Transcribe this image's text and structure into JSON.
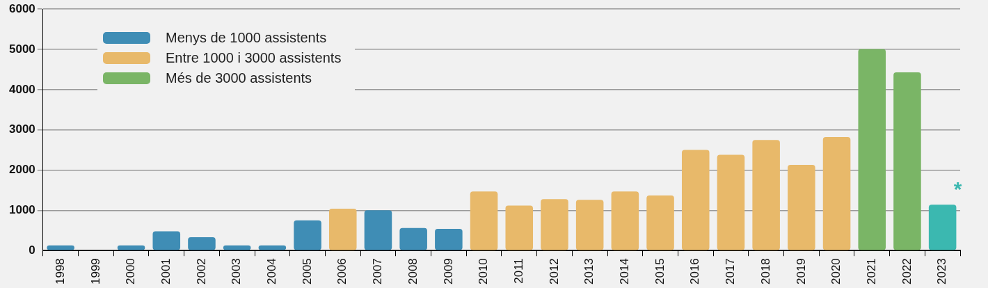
{
  "chart_data": {
    "type": "bar",
    "stacked": true,
    "categories": [
      "1998",
      "1999",
      "2000",
      "2001",
      "2002",
      "2003",
      "2004",
      "2005",
      "2006",
      "2007",
      "2008",
      "2009",
      "2010",
      "2011",
      "2012",
      "2013",
      "2014",
      "2015",
      "2016",
      "2017",
      "2018",
      "2019",
      "2020",
      "2021",
      "2022",
      "2023"
    ],
    "series": [
      {
        "name": "Menys de 1000 assistents",
        "color": "#3f8db5",
        "values": [
          130,
          null,
          130,
          480,
          330,
          130,
          130,
          750,
          null,
          1000,
          560,
          540,
          null,
          null,
          null,
          null,
          null,
          null,
          null,
          null,
          null,
          null,
          null,
          null,
          null,
          null
        ]
      },
      {
        "name": "Entre 1000 i 3000 assistents",
        "color": "#e8b96a",
        "values": [
          null,
          null,
          null,
          null,
          null,
          null,
          null,
          null,
          1040,
          null,
          null,
          null,
          1470,
          1120,
          1280,
          1260,
          1470,
          1370,
          2500,
          2380,
          2750,
          2130,
          2820,
          null,
          null,
          null
        ]
      },
      {
        "name": "Més de 3000 assistents",
        "color": "#7ab566",
        "values": [
          null,
          null,
          null,
          null,
          null,
          null,
          null,
          null,
          null,
          null,
          null,
          null,
          null,
          null,
          null,
          null,
          null,
          null,
          null,
          null,
          null,
          null,
          null,
          5010,
          4430,
          null
        ]
      },
      {
        "color": "#3bb8b0",
        "values": [
          null,
          null,
          null,
          null,
          null,
          null,
          null,
          null,
          null,
          null,
          null,
          null,
          null,
          null,
          null,
          null,
          null,
          null,
          null,
          null,
          null,
          null,
          null,
          null,
          null,
          1140
        ]
      }
    ],
    "ylim": [
      0,
      6000
    ],
    "yticks": [
      0,
      1000,
      2000,
      3000,
      4000,
      5000,
      6000
    ],
    "grid": "y",
    "legend": "top left",
    "annotations": [
      {
        "text": "*",
        "x": "2023",
        "y": 1140
      }
    ]
  }
}
